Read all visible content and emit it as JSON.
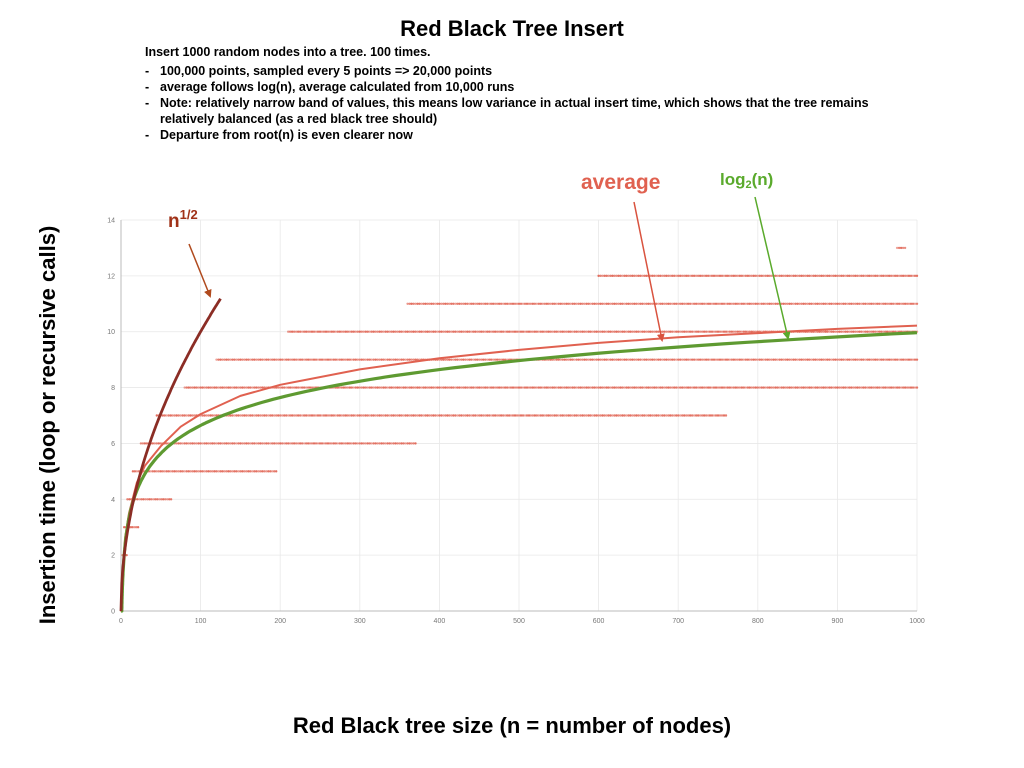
{
  "header": {
    "title": "Red Black Tree Insert",
    "intro": "Insert 1000 random nodes into a tree. 100 times.",
    "notes": [
      "100,000 points, sampled every 5 points => 20,000 points",
      "average follows log(n), average calculated from 10,000 runs",
      "Note: relatively narrow band of values, this means low variance in actual insert time, which shows that the tree remains relatively balanced (as a red black tree should)",
      "Departure from root(n) is even clearer now"
    ],
    "bullet": "-"
  },
  "chart_data": {
    "type": "scatter",
    "xlabel": "Red Black tree size (n = number of nodes)",
    "ylabel": "Insertion time (loop or recursive calls)",
    "xlim": [
      0,
      1000
    ],
    "ylim": [
      0,
      14
    ],
    "xticks": [
      "0",
      "100",
      "200",
      "300",
      "400",
      "500",
      "600",
      "700",
      "800",
      "900",
      "1000"
    ],
    "yticks": [
      "0",
      "2",
      "4",
      "6",
      "8",
      "10",
      "12",
      "14"
    ],
    "grid": true,
    "scatter_bands": [
      {
        "y": 0,
        "x_from": 0,
        "x_to": 1
      },
      {
        "y": 1,
        "x_from": 1,
        "x_to": 3
      },
      {
        "y": 2,
        "x_from": 2,
        "x_to": 8
      },
      {
        "y": 3,
        "x_from": 4,
        "x_to": 22
      },
      {
        "y": 4,
        "x_from": 8,
        "x_to": 65
      },
      {
        "y": 5,
        "x_from": 15,
        "x_to": 195
      },
      {
        "y": 6,
        "x_from": 25,
        "x_to": 370
      },
      {
        "y": 7,
        "x_from": 45,
        "x_to": 760
      },
      {
        "y": 8,
        "x_from": 80,
        "x_to": 1000
      },
      {
        "y": 9,
        "x_from": 120,
        "x_to": 1000
      },
      {
        "y": 10,
        "x_from": 210,
        "x_to": 1000
      },
      {
        "y": 11,
        "x_from": 360,
        "x_to": 1000
      },
      {
        "y": 12,
        "x_from": 600,
        "x_to": 1000
      },
      {
        "y": 13,
        "x_from": 975,
        "x_to": 985
      }
    ],
    "series": [
      {
        "name": "average",
        "color": "#e06150",
        "x": [
          0,
          5,
          10,
          20,
          30,
          50,
          75,
          100,
          150,
          200,
          300,
          400,
          500,
          600,
          700,
          800,
          900,
          1000
        ],
        "values": [
          0,
          2.6,
          3.5,
          4.6,
          5.2,
          5.9,
          6.6,
          7.05,
          7.7,
          8.1,
          8.65,
          9.05,
          9.35,
          9.6,
          9.8,
          9.95,
          10.1,
          10.22
        ]
      },
      {
        "name": "log2(n)",
        "color": "#5e9a31",
        "x": [
          0,
          1,
          2,
          4,
          8,
          16,
          32,
          64,
          128,
          256,
          512,
          1000
        ],
        "values": [
          0,
          0,
          1,
          2,
          3,
          4,
          5,
          6,
          7,
          8,
          9,
          9.97
        ]
      },
      {
        "name": "n1/2",
        "color": "#8b2d25",
        "x": [
          0,
          5,
          10,
          20,
          30,
          50,
          75,
          100,
          125
        ],
        "values": [
          0,
          2.24,
          3.16,
          4.47,
          5.48,
          7.07,
          8.66,
          10,
          11.18
        ]
      }
    ],
    "annotations": {
      "average": "average",
      "log_base": "log",
      "log_sub": "2",
      "log_arg": "(n)",
      "sqrt_base": "n",
      "sqrt_exp": "1/2"
    },
    "colors": {
      "average": "#e06150",
      "log": "#5e9a31",
      "sqrt": "#8b2d25",
      "grid": "#e8e8e8",
      "axis": "#bbbbbb"
    }
  }
}
